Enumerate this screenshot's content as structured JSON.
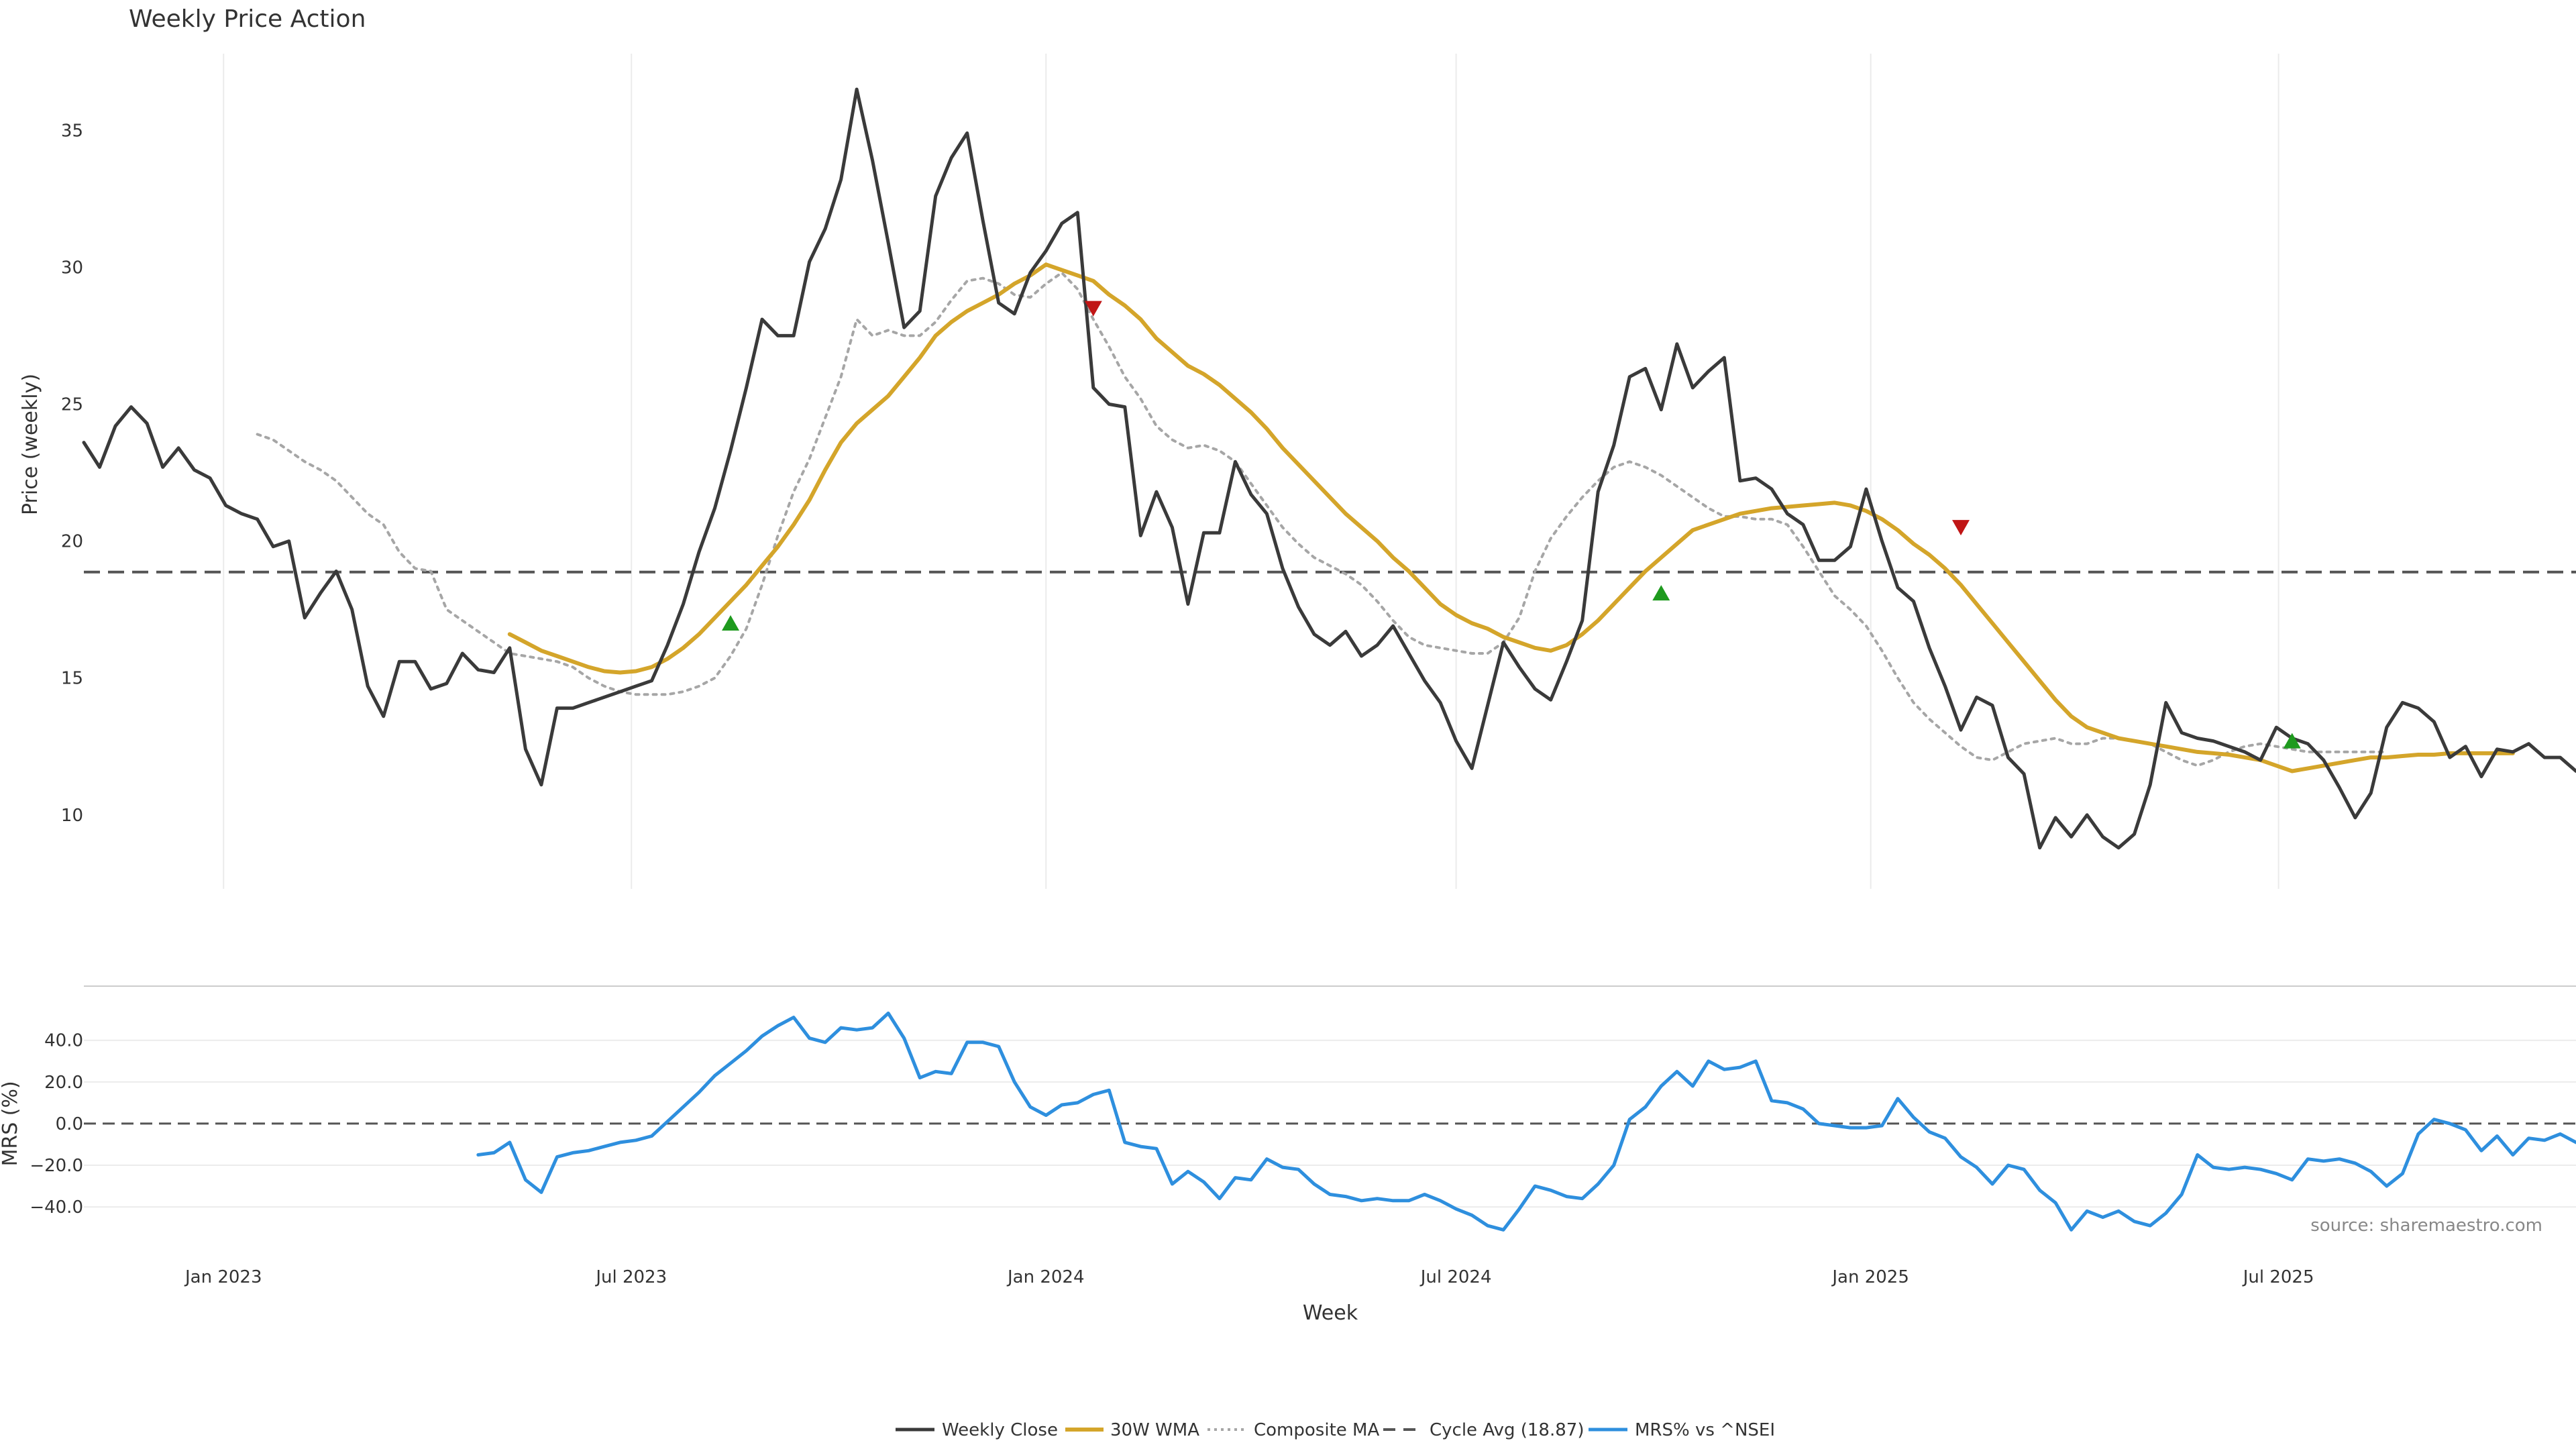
{
  "chart_data": {
    "type": "line",
    "title": "Weekly Price Action",
    "source_note": "source: sharemaestro.com",
    "xlabel": "Week",
    "x_range": [
      "2022-10-31",
      "2025-11-10"
    ],
    "x_ticks": [
      {
        "date": "2023-01-01",
        "label": "Jan 2023"
      },
      {
        "date": "2023-07-01",
        "label": "Jul 2023"
      },
      {
        "date": "2024-01-01",
        "label": "Jan 2024"
      },
      {
        "date": "2024-07-01",
        "label": "Jul 2024"
      },
      {
        "date": "2025-01-01",
        "label": "Jan 2025"
      },
      {
        "date": "2025-07-01",
        "label": "Jul 2025"
      }
    ],
    "price_panel": {
      "ylabel": "Price (weekly)",
      "ylim": [
        7.3,
        37.8
      ],
      "yticks": [
        10,
        15,
        20,
        25,
        30,
        35
      ],
      "grid": "vertical",
      "cycle_avg": 18.87,
      "series": [
        {
          "name": "Weekly Close",
          "color": "#3a3a3a",
          "style": "solid",
          "start": "2022-10-31",
          "values": [
            23.6,
            22.7,
            24.2,
            24.9,
            24.3,
            22.7,
            23.4,
            22.6,
            22.3,
            21.3,
            21.0,
            20.8,
            19.8,
            20.0,
            17.2,
            18.1,
            18.9,
            17.5,
            14.7,
            13.6,
            15.6,
            15.6,
            14.6,
            14.8,
            15.9,
            15.3,
            15.2,
            16.1,
            12.4,
            11.1,
            13.9,
            13.9,
            14.1,
            14.3,
            14.5,
            14.7,
            14.9,
            16.2,
            17.7,
            19.6,
            21.2,
            23.3,
            25.6,
            28.1,
            27.5,
            27.5,
            30.2,
            31.4,
            33.2,
            36.5,
            33.9,
            30.9,
            27.8,
            28.4,
            32.6,
            34.0,
            34.9,
            31.7,
            28.7,
            28.3,
            29.8,
            30.6,
            31.6,
            32.0,
            25.6,
            25.0,
            24.9,
            20.2,
            21.8,
            20.5,
            17.7,
            20.3,
            20.3,
            22.9,
            21.7,
            21.0,
            19.0,
            17.6,
            16.6,
            16.2,
            16.7,
            15.8,
            16.2,
            16.9,
            15.9,
            14.9,
            14.1,
            12.7,
            11.7,
            14.0,
            16.3,
            15.4,
            14.6,
            14.2,
            15.6,
            17.1,
            21.8,
            23.5,
            26.0,
            26.3,
            24.8,
            27.2,
            25.6,
            26.2,
            26.7,
            22.2,
            22.3,
            21.9,
            21.0,
            20.6,
            19.3,
            19.3,
            19.8,
            21.9,
            20.0,
            18.3,
            17.8,
            16.1,
            14.7,
            13.1,
            14.3,
            14.0,
            12.1,
            11.5,
            8.8,
            9.9,
            9.2,
            10.0,
            9.2,
            8.8,
            9.3,
            11.1,
            14.1,
            13.0,
            12.8,
            12.7,
            12.5,
            12.3,
            12.0,
            13.2,
            12.8,
            12.6,
            12.0,
            11.0,
            9.9,
            10.8,
            13.2,
            14.1,
            13.9,
            13.4,
            12.1,
            12.5,
            11.4,
            12.4,
            12.3,
            12.6,
            12.1,
            12.1,
            11.6
          ]
        },
        {
          "name": "30W WMA",
          "color": "#d4a52a",
          "style": "solid",
          "start": "2023-05-08",
          "values": [
            16.6,
            16.3,
            16.0,
            15.8,
            15.6,
            15.4,
            15.25,
            15.2,
            15.25,
            15.4,
            15.7,
            16.1,
            16.6,
            17.2,
            17.8,
            18.4,
            19.1,
            19.8,
            20.6,
            21.5,
            22.6,
            23.6,
            24.3,
            24.8,
            25.3,
            26.0,
            26.7,
            27.5,
            28.0,
            28.4,
            28.7,
            29.0,
            29.4,
            29.7,
            30.1,
            29.9,
            29.7,
            29.5,
            29.0,
            28.6,
            28.1,
            27.4,
            26.9,
            26.4,
            26.1,
            25.7,
            25.2,
            24.7,
            24.1,
            23.4,
            22.8,
            22.2,
            21.6,
            21.0,
            20.5,
            20.0,
            19.4,
            18.9,
            18.3,
            17.7,
            17.3,
            17.0,
            16.8,
            16.5,
            16.3,
            16.1,
            16.0,
            16.2,
            16.6,
            17.1,
            17.7,
            18.3,
            18.9,
            19.4,
            19.9,
            20.4,
            20.6,
            20.8,
            21.0,
            21.1,
            21.2,
            21.25,
            21.3,
            21.35,
            21.4,
            21.3,
            21.1,
            20.8,
            20.4,
            19.9,
            19.5,
            19.0,
            18.4,
            17.7,
            17.0,
            16.3,
            15.6,
            14.9,
            14.2,
            13.6,
            13.2,
            13.0,
            12.8,
            12.7,
            12.6,
            12.5,
            12.4,
            12.3,
            12.25,
            12.2,
            12.1,
            12.0,
            11.8,
            11.6,
            11.7,
            11.8,
            11.9,
            12.0,
            12.1,
            12.1,
            12.15,
            12.2,
            12.2,
            12.25,
            12.25,
            12.25,
            12.25,
            12.25
          ]
        },
        {
          "name": "Composite MA",
          "color": "#a6a6a6",
          "style": "dotted",
          "start": "2023-01-16",
          "values": [
            23.9,
            23.7,
            23.3,
            22.9,
            22.6,
            22.2,
            21.6,
            21.0,
            20.6,
            19.6,
            19.0,
            18.9,
            17.5,
            17.1,
            16.7,
            16.3,
            15.9,
            15.8,
            15.7,
            15.6,
            15.4,
            15.0,
            14.7,
            14.5,
            14.4,
            14.4,
            14.4,
            14.5,
            14.7,
            15.0,
            15.8,
            16.8,
            18.4,
            20.2,
            21.8,
            23.0,
            24.5,
            26.0,
            28.1,
            27.5,
            27.7,
            27.5,
            27.5,
            28.0,
            28.8,
            29.5,
            29.6,
            29.4,
            29.0,
            28.9,
            29.4,
            29.8,
            29.2,
            28.1,
            27.1,
            26.0,
            25.2,
            24.2,
            23.7,
            23.4,
            23.5,
            23.3,
            22.9,
            22.1,
            21.3,
            20.5,
            19.9,
            19.4,
            19.1,
            18.8,
            18.4,
            17.8,
            17.1,
            16.5,
            16.2,
            16.1,
            16.0,
            15.9,
            15.9,
            16.3,
            17.2,
            18.9,
            20.1,
            20.9,
            21.6,
            22.2,
            22.7,
            22.9,
            22.7,
            22.4,
            22.0,
            21.6,
            21.2,
            20.9,
            20.9,
            20.8,
            20.8,
            20.6,
            19.8,
            18.9,
            18.0,
            17.5,
            16.9,
            16.0,
            15.0,
            14.1,
            13.5,
            13.0,
            12.5,
            12.1,
            12.0,
            12.3,
            12.6,
            12.7,
            12.8,
            12.6,
            12.6,
            12.8,
            12.8,
            12.7,
            12.6,
            12.3,
            12.0,
            11.8,
            12.0,
            12.3,
            12.5,
            12.6,
            12.5,
            12.4,
            12.3,
            12.3,
            12.3,
            12.3,
            12.3,
            12.3
          ]
        }
      ],
      "signals": [
        {
          "type": "buy",
          "date": "2023-08-14",
          "value": 17.0
        },
        {
          "type": "sell",
          "date": "2024-01-22",
          "value": 28.5
        },
        {
          "type": "buy",
          "date": "2024-09-30",
          "value": 18.1
        },
        {
          "type": "sell",
          "date": "2025-02-10",
          "value": 20.5
        },
        {
          "type": "buy",
          "date": "2025-07-07",
          "value": 12.7
        }
      ]
    },
    "mrs_panel": {
      "ylabel": "MRS (%)",
      "ylim": [
        -58,
        66
      ],
      "yticks": [
        -40,
        -20,
        0,
        20,
        40
      ],
      "ytick_labels": [
        "−40.0",
        "−20.0",
        "0.0",
        "20.0",
        "40.0"
      ],
      "grid": "horizontal",
      "zero_line": 0,
      "series": [
        {
          "name": "MRS% vs ^NSEI",
          "color": "#2e8fde",
          "style": "solid",
          "start": "2023-04-24",
          "values": [
            -15.0,
            -14.0,
            -9.0,
            -27.0,
            -33.0,
            -16.0,
            -14.0,
            -13.0,
            -11.0,
            -9.0,
            -8.0,
            -6.0,
            1.0,
            8.0,
            15.0,
            23.0,
            29.0,
            35.0,
            42.0,
            47.0,
            51.0,
            41.0,
            39.0,
            46.0,
            45.0,
            46.0,
            53.0,
            41.0,
            22.0,
            25.0,
            24.0,
            39.0,
            39.0,
            37.0,
            20.0,
            8.0,
            4.0,
            9.0,
            10.0,
            14.0,
            16.0,
            -9.0,
            -11.0,
            -12.0,
            -29.0,
            -23.0,
            -28.0,
            -36.0,
            -26.0,
            -27.0,
            -17.0,
            -21.0,
            -22.0,
            -29.0,
            -34.0,
            -35.0,
            -37.0,
            -36.0,
            -37.0,
            -37.0,
            -34.0,
            -37.0,
            -41.0,
            -44.0,
            -49.0,
            -51.0,
            -41.0,
            -30.0,
            -32.0,
            -35.0,
            -36.0,
            -29.0,
            -20.0,
            2.0,
            8.0,
            18.0,
            25.0,
            18.0,
            30.0,
            26.0,
            27.0,
            30.0,
            11.0,
            10.0,
            7.0,
            0.0,
            -1.0,
            -2.0,
            -2.0,
            -1.0,
            12.0,
            3.0,
            -4.0,
            -7.0,
            -16.0,
            -21.0,
            -29.0,
            -20.0,
            -22.0,
            -32.0,
            -38.0,
            -51.0,
            -42.0,
            -45.0,
            -42.0,
            -47.0,
            -49.0,
            -43.0,
            -34.0,
            -15.0,
            -21.0,
            -22.0,
            -21.0,
            -22.0,
            -24.0,
            -27.0,
            -17.0,
            -18.0,
            -17.0,
            -19.0,
            -23.0,
            -30.0,
            -24.0,
            -5.0,
            2.0,
            0.0,
            -3.0,
            -13.0,
            -6.0,
            -15.0,
            -7.0,
            -8.0,
            -5.0,
            -9.0,
            -7.0,
            -10.0
          ]
        }
      ]
    },
    "cycle_avg_legend": "Cycle Avg (18.87)",
    "legend_placement": "bottom-center"
  }
}
